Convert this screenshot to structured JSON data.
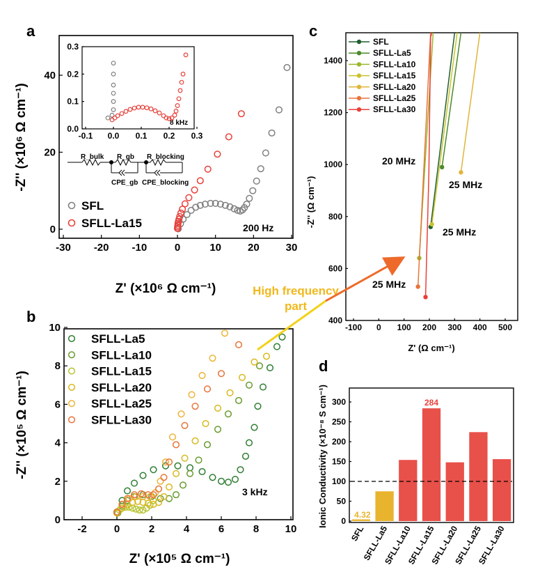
{
  "chart_data": [
    {
      "id": "a",
      "type": "scatter",
      "panel_label": "a",
      "xlabel": "Z' (×10⁶ Ω cm⁻¹)",
      "ylabel": "-Z'' (×10⁶ Ω cm⁻¹)",
      "xlim": [
        -30,
        30
      ],
      "ylim": [
        -2,
        50
      ],
      "xticks": [
        "-30",
        "-20",
        "-10",
        "0",
        "10",
        "20",
        "30"
      ],
      "yticks": [
        "0",
        "20",
        "40"
      ],
      "legend": [
        "SFL",
        "SFLL-La15"
      ],
      "annotations": [
        "200 Hz"
      ],
      "series": [
        {
          "name": "SFL",
          "color": "#808080",
          "x": [
            0.2,
            0.8,
            1.5,
            2.5,
            3.6,
            4.8,
            6.0,
            7.3,
            8.7,
            10.0,
            11.3,
            12.6,
            13.8,
            14.9,
            15.8,
            16.5,
            17.1,
            17.6,
            18.2,
            18.9,
            19.8,
            20.8,
            21.9,
            23.2,
            24.8,
            26.7,
            28.8
          ],
          "y": [
            0.1,
            1.4,
            2.6,
            3.8,
            4.9,
            5.7,
            6.2,
            6.5,
            6.7,
            6.7,
            6.5,
            6.2,
            5.8,
            5.3,
            4.9,
            4.7,
            5.0,
            5.6,
            6.5,
            8.0,
            10.0,
            12.5,
            15.7,
            19.8,
            25.0,
            31.0,
            42.0
          ]
        },
        {
          "name": "SFLL-La15",
          "color": "#e8403a",
          "x": [
            0.0,
            0.05,
            0.1,
            0.15,
            0.25,
            0.4,
            0.6,
            0.9,
            1.3,
            2.0,
            3.0,
            4.5,
            6.0,
            8.0,
            10.5,
            13.5,
            16.8
          ],
          "y": [
            0.2,
            0.6,
            1.0,
            1.5,
            2.0,
            2.6,
            3.3,
            4.2,
            5.2,
            6.6,
            8.2,
            10.2,
            12.6,
            15.6,
            19.5,
            24.0,
            30.0
          ]
        }
      ],
      "inset": {
        "xlim": [
          -0.1,
          0.3
        ],
        "ylim": [
          0,
          0.3
        ],
        "xticks": [
          "-0.1",
          "0.0",
          "0.1",
          "0.2",
          "0.3"
        ],
        "yticks": [
          "0.0",
          "0.1",
          "0.2",
          "0.3"
        ],
        "annotation": "8 kHz",
        "series": [
          {
            "name": "SFL",
            "color": "#808080",
            "x": [
              -0.02,
              -0.005,
              0.0,
              0.0,
              0.0,
              0.0,
              0.0,
              0.0
            ],
            "y": [
              0.04,
              0.05,
              0.07,
              0.1,
              0.13,
              0.16,
              0.2,
              0.24
            ]
          },
          {
            "name": "SFLL-La15",
            "color": "#e8403a",
            "x": [
              -0.005,
              0.005,
              0.015,
              0.03,
              0.045,
              0.06,
              0.075,
              0.09,
              0.105,
              0.12,
              0.135,
              0.15,
              0.165,
              0.18,
              0.19,
              0.2,
              0.21,
              0.22,
              0.225,
              0.23,
              0.235,
              0.24,
              0.245,
              0.25,
              0.26
            ],
            "y": [
              0.033,
              0.04,
              0.048,
              0.056,
              0.064,
              0.071,
              0.076,
              0.079,
              0.079,
              0.077,
              0.073,
              0.066,
              0.058,
              0.048,
              0.04,
              0.037,
              0.04,
              0.05,
              0.065,
              0.085,
              0.11,
              0.14,
              0.17,
              0.2,
              0.27
            ]
          }
        ]
      },
      "circuit": {
        "r_bulk": "R_bulk",
        "r_gb": "R_gb",
        "cpe_gb": "CPE_gb",
        "r_blocking": "R_blocking",
        "cpe_blocking": "CPE_blocking"
      }
    },
    {
      "id": "b",
      "type": "scatter",
      "panel_label": "b",
      "xlabel": "Z' (×10⁵ Ω cm⁻¹)",
      "ylabel": "-Z'' (×10⁵ Ω cm⁻¹)",
      "xlim": [
        -3,
        10
      ],
      "ylim": [
        0,
        10
      ],
      "xticks": [
        "-2",
        "0",
        "2",
        "4",
        "6",
        "8",
        "10"
      ],
      "yticks": [
        "0",
        "2",
        "4",
        "6",
        "8",
        "10"
      ],
      "legend": [
        "SFLL-La5",
        "SFLL-La10",
        "SFLL-La15",
        "SFLL-La20",
        "SFLL-La25",
        "SFLL-La30"
      ],
      "annotations": [
        "3 kHz"
      ],
      "series": [
        {
          "name": "SFLL-La5",
          "color": "#2e7d32",
          "x": [
            0.0,
            0.3,
            0.6,
            1.0,
            1.5,
            2.1,
            2.8,
            3.5,
            4.2,
            4.9,
            5.5,
            6.0,
            6.4,
            6.8,
            7.1,
            7.4,
            7.6,
            7.9,
            8.1,
            8.4,
            8.8,
            9.2,
            9.5
          ],
          "y": [
            0.4,
            1.0,
            1.5,
            1.9,
            2.3,
            2.6,
            2.8,
            2.8,
            2.7,
            2.5,
            2.2,
            2.0,
            1.95,
            2.1,
            2.6,
            3.3,
            4.0,
            4.8,
            5.9,
            6.9,
            7.9,
            9.0,
            9.5
          ]
        },
        {
          "name": "SFLL-La10",
          "color": "#6a9a2e",
          "x": [
            0.05,
            0.3,
            0.6,
            1.0,
            1.5,
            2.0,
            2.5,
            3.0,
            3.4,
            3.8,
            4.2,
            4.7,
            5.2,
            5.8,
            6.4,
            7.0,
            7.6,
            8.2
          ],
          "y": [
            0.35,
            0.7,
            1.0,
            1.2,
            1.3,
            1.2,
            1.1,
            1.1,
            1.3,
            1.8,
            2.4,
            3.1,
            3.9,
            4.7,
            5.5,
            6.2,
            7.0,
            8.0
          ]
        },
        {
          "name": "SFLL-La15",
          "color": "#b5c22e",
          "x": [
            0.0,
            0.15,
            0.3,
            0.5,
            0.7,
            0.9,
            1.1,
            1.3,
            1.5,
            1.7,
            1.9,
            2.1
          ],
          "y": [
            0.35,
            0.5,
            0.6,
            0.65,
            0.65,
            0.6,
            0.55,
            0.5,
            0.5,
            0.6,
            0.75,
            1.0
          ]
        },
        {
          "name": "SFLL-La20",
          "color": "#d9b81f",
          "x": [
            0.0,
            0.3,
            0.6,
            0.9,
            1.2,
            1.5,
            1.8,
            2.1,
            2.4,
            2.7,
            3.0,
            3.4,
            3.9,
            4.5,
            5.1,
            5.8,
            6.5,
            7.2,
            7.9,
            8.6
          ],
          "y": [
            0.35,
            0.6,
            0.8,
            0.9,
            0.95,
            0.9,
            0.85,
            0.8,
            0.9,
            1.2,
            1.7,
            2.4,
            3.2,
            4.1,
            5.0,
            5.8,
            6.6,
            7.4,
            8.2,
            8.5
          ]
        },
        {
          "name": "SFLL-La25",
          "color": "#ecb437",
          "x": [
            0.0,
            0.3,
            0.7,
            1.1,
            1.5,
            1.9,
            2.2,
            2.5,
            2.8,
            3.2,
            3.7,
            4.3,
            4.9,
            5.5,
            6.2
          ],
          "y": [
            0.4,
            0.8,
            1.1,
            1.2,
            1.2,
            1.2,
            1.4,
            2.0,
            3.0,
            4.3,
            5.5,
            6.5,
            7.5,
            8.4,
            9.7
          ]
        },
        {
          "name": "SFLL-La30",
          "color": "#e8743a",
          "x": [
            0.0,
            0.3,
            0.6,
            1.0,
            1.4,
            1.8,
            2.1,
            2.4,
            2.7,
            3.0,
            3.4,
            3.9,
            4.5,
            5.2,
            6.0,
            7.0
          ],
          "y": [
            0.4,
            0.8,
            1.1,
            1.3,
            1.35,
            1.3,
            1.3,
            1.6,
            2.2,
            3.0,
            3.9,
            4.9,
            5.9,
            6.8,
            7.6,
            9.1
          ]
        }
      ]
    },
    {
      "id": "c",
      "type": "line",
      "panel_label": "c",
      "xlabel": "Z' (Ω cm⁻¹)",
      "ylabel": "-Z'' (Ω cm⁻¹)",
      "xlim": [
        -150,
        500
      ],
      "ylim": [
        400,
        1500
      ],
      "xticks": [
        "-100",
        "0",
        "100",
        "200",
        "300",
        "400",
        "500"
      ],
      "yticks": [
        "400",
        "600",
        "800",
        "1000",
        "1200",
        "1400"
      ],
      "legend": [
        "SFL",
        "SFLL-La5",
        "SFLL-La10",
        "SFLL-La15",
        "SFLL-La20",
        "SFLL-La25",
        "SFLL-La30"
      ],
      "annotations": [
        "20 MHz",
        "25 MHz",
        "25 MHz",
        "25 MHz"
      ],
      "series": [
        {
          "name": "SFL",
          "color": "#1f5f2f",
          "x": [
            205,
            300
          ],
          "y": [
            760,
            1520
          ]
        },
        {
          "name": "SFLL-La5",
          "color": "#4a8a2a",
          "x": [
            250,
            325
          ],
          "y": [
            990,
            1520
          ]
        },
        {
          "name": "SFLL-La10",
          "color": "#9ab82a",
          "x": [
            160,
            215
          ],
          "y": [
            640,
            1520
          ]
        },
        {
          "name": "SFLL-La15",
          "color": "#c9c22e",
          "x": [
            210,
            310
          ],
          "y": [
            770,
            1520
          ]
        },
        {
          "name": "SFLL-La20",
          "color": "#e0b53a",
          "x": [
            325,
            400
          ],
          "y": [
            970,
            1520
          ]
        },
        {
          "name": "SFLL-La25",
          "color": "#e8743a",
          "x": [
            155,
            205
          ],
          "y": [
            530,
            1520
          ]
        },
        {
          "name": "SFLL-La30",
          "color": "#e8403a",
          "x": [
            185,
            198,
            205,
            210
          ],
          "y": [
            490,
            960,
            1490,
            1520
          ]
        }
      ]
    },
    {
      "id": "d",
      "type": "bar",
      "panel_label": "d",
      "ylabel": "Ionic Conductivity (×10⁻⁸ S cm⁻¹)",
      "ylim": [
        0,
        340
      ],
      "yticks": [
        "0",
        "50",
        "100",
        "150",
        "200",
        "250",
        "300"
      ],
      "categories": [
        "SFL",
        "SFLL-La5",
        "SFLL-La10",
        "SFLL-La15",
        "SFLL-La20",
        "SFLL-La25",
        "SFLL-La30"
      ],
      "values": [
        4.32,
        75,
        154,
        284,
        148,
        224,
        156
      ],
      "colors": [
        "#e9b42d",
        "#e9b42d",
        "#e8504a",
        "#e8504a",
        "#e8504a",
        "#e8504a",
        "#e8504a"
      ],
      "reference_line": 100,
      "value_labels": {
        "SFL": "4.32",
        "SFLL-La15": "284"
      }
    }
  ],
  "callout": {
    "line1": "High frequency",
    "line2": "part"
  }
}
